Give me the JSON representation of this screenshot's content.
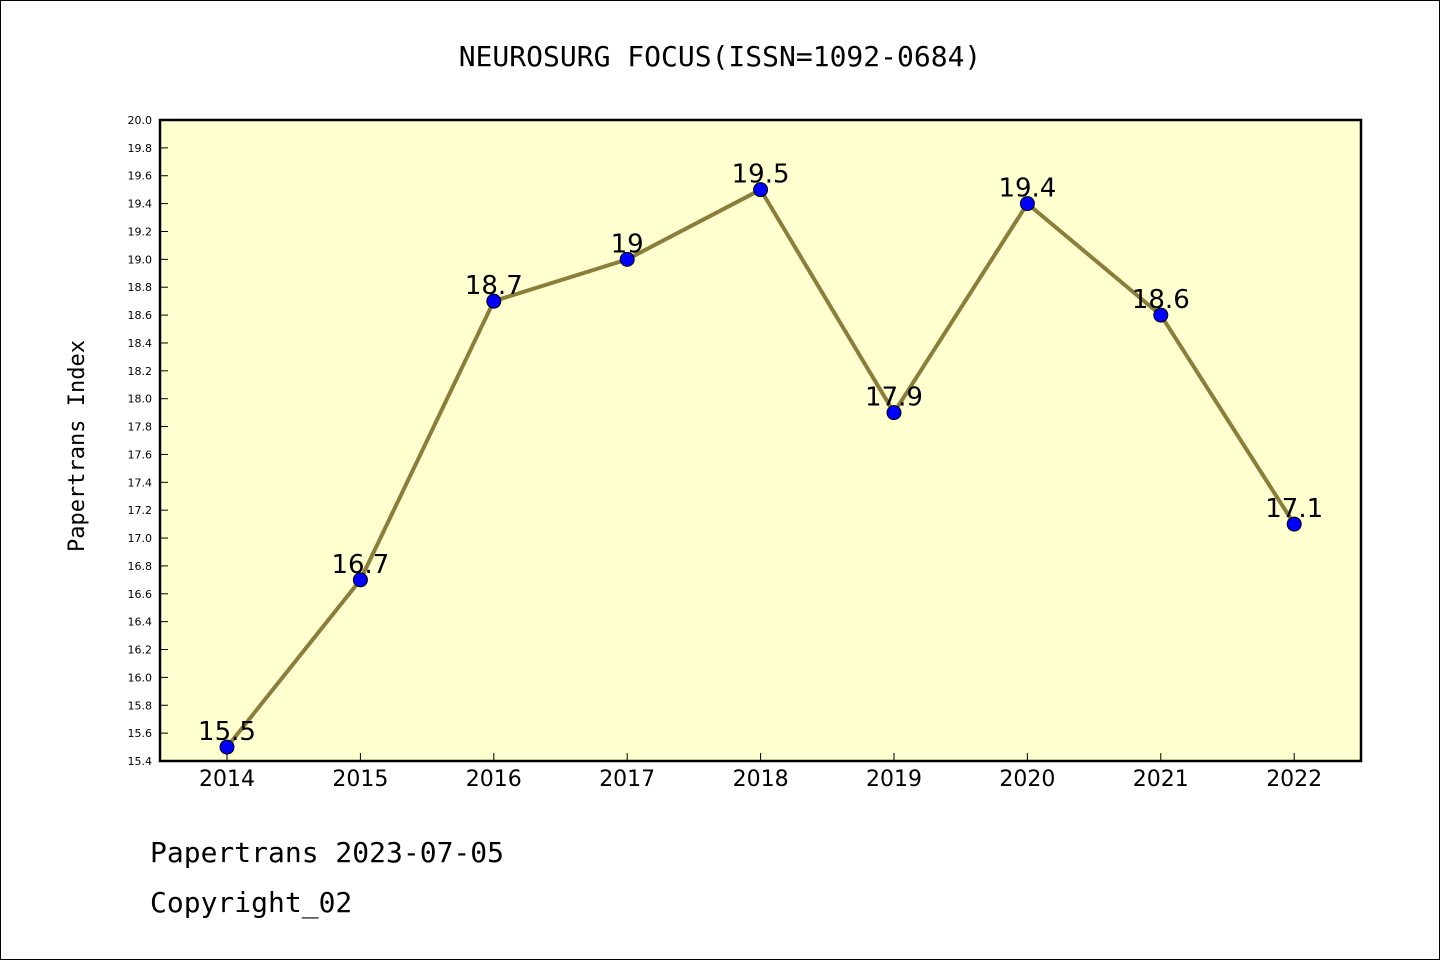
{
  "chart_data": {
    "type": "line",
    "title": "NEUROSURG FOCUS(ISSN=1092-0684)",
    "ylabel": "Papertrans Index",
    "xlabel": "",
    "categories": [
      "2014",
      "2015",
      "2016",
      "2017",
      "2018",
      "2019",
      "2020",
      "2021",
      "2022"
    ],
    "values": [
      15.5,
      16.7,
      18.7,
      19.0,
      19.5,
      17.9,
      19.4,
      18.6,
      17.1
    ],
    "data_labels": [
      "15.5",
      "16.7",
      "18.7",
      "19",
      "19.5",
      "17.9",
      "19.4",
      "18.6",
      "17.1"
    ],
    "ylim": [
      15.4,
      20.0
    ],
    "ytick_step": 0.2,
    "grid": false,
    "colors": {
      "plot_background": "#ffffd0",
      "line": "#8b7d3a",
      "marker": "#0000ff"
    }
  },
  "footer": {
    "date_line": "Papertrans 2023-07-05",
    "copyright_line": "Copyright_02"
  }
}
